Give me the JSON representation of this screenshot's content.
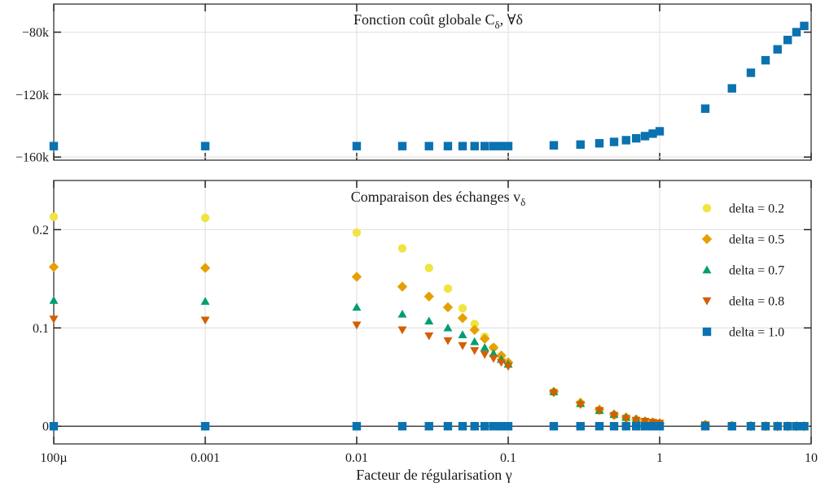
{
  "chart_data": {
    "type": "scatter",
    "xscale": "log",
    "xlim": [
      0.0001,
      10
    ],
    "x_ticks": [
      0.0001,
      0.001,
      0.01,
      0.1,
      1,
      10
    ],
    "x_tick_labels": [
      "100µ",
      "0.001",
      "0.01",
      "0.1",
      "1",
      "10"
    ],
    "xlabel": "Facteur de régularisation γ",
    "grid": true,
    "x": [
      0.0001,
      0.001,
      0.01,
      0.02,
      0.03,
      0.04,
      0.05,
      0.06,
      0.07,
      0.08,
      0.09,
      0.1,
      0.2,
      0.3,
      0.4,
      0.5,
      0.6,
      0.7,
      0.8,
      0.9,
      1,
      2,
      3,
      4,
      5,
      6,
      7,
      8,
      9
    ],
    "panels": [
      {
        "title": "Fonction coût globale C",
        "title_subscript": "δ",
        "title_suffix": ", ∀δ",
        "ylim": [
          -162000,
          -62000
        ],
        "y_ticks": [
          -160000,
          -120000,
          -80000
        ],
        "y_tick_labels": [
          "−160k",
          "−120k",
          "−80k"
        ],
        "series": [
          {
            "color": "#0a72b0",
            "marker": "square",
            "values": [
              -153000,
              -153000,
              -153000,
              -153000,
              -153000,
              -153000,
              -153000,
              -153000,
              -153000,
              -153000,
              -153000,
              -153000,
              -152500,
              -152000,
              -151200,
              -150300,
              -149200,
              -148000,
              -146600,
              -145000,
              -143500,
              -129000,
              -116000,
              -106000,
              -98000,
              -91000,
              -85000,
              -80000,
              -76000
            ]
          }
        ]
      },
      {
        "title": "Comparaison des échanges v",
        "title_subscript": "δ",
        "ylim": [
          -0.018,
          0.25
        ],
        "y_ticks": [
          0,
          0.1,
          0.2
        ],
        "y_tick_labels": [
          "0",
          "0.1",
          "0.2"
        ],
        "legend_position": "top-right",
        "series": [
          {
            "name": "delta = 0.2",
            "color": "#f0e442",
            "marker": "circle",
            "values": [
              0.213,
              0.212,
              0.197,
              0.181,
              0.161,
              0.14,
              0.12,
              0.104,
              0.091,
              0.08,
              0.071,
              0.064,
              0.035,
              0.023,
              0.016,
              0.011,
              0.008,
              0.006,
              0.005,
              0.004,
              0.003,
              0.0015,
              0.0005,
              0.0002,
              0.0001,
              0,
              0,
              0,
              0
            ]
          },
          {
            "name": "delta = 0.5",
            "color": "#e69f00",
            "marker": "diamond",
            "values": [
              0.162,
              0.161,
              0.152,
              0.142,
              0.132,
              0.121,
              0.11,
              0.098,
              0.089,
              0.08,
              0.072,
              0.065,
              0.035,
              0.024,
              0.017,
              0.012,
              0.009,
              0.007,
              0.005,
              0.004,
              0.003,
              0.0015,
              0.0005,
              0.0002,
              0.0001,
              0,
              0,
              0,
              0
            ]
          },
          {
            "name": "delta = 0.7",
            "color": "#009e73",
            "marker": "triangle-up",
            "values": [
              0.128,
              0.127,
              0.121,
              0.114,
              0.107,
              0.1,
              0.093,
              0.086,
              0.08,
              0.074,
              0.068,
              0.063,
              0.035,
              0.023,
              0.016,
              0.012,
              0.009,
              0.007,
              0.005,
              0.004,
              0.003,
              0.0015,
              0.0005,
              0.0002,
              0.0001,
              0,
              0,
              0,
              0
            ]
          },
          {
            "name": "delta = 0.8",
            "color": "#d55e00",
            "marker": "triangle-down",
            "values": [
              0.109,
              0.108,
              0.103,
              0.098,
              0.092,
              0.087,
              0.082,
              0.077,
              0.073,
              0.069,
              0.065,
              0.061,
              0.034,
              0.022,
              0.016,
              0.011,
              0.008,
              0.006,
              0.005,
              0.004,
              0.003,
              0.0015,
              0.0005,
              0.0002,
              0.0001,
              0,
              0,
              0,
              0
            ]
          },
          {
            "name": "delta = 1.0",
            "color": "#0a72b0",
            "marker": "square",
            "values": [
              0,
              0,
              0,
              0,
              0,
              0,
              0,
              0,
              0,
              0,
              0,
              0,
              0,
              0,
              0,
              0,
              0,
              0,
              0,
              0,
              0,
              0,
              0,
              0,
              0,
              0,
              0,
              0,
              0
            ]
          }
        ]
      }
    ]
  }
}
